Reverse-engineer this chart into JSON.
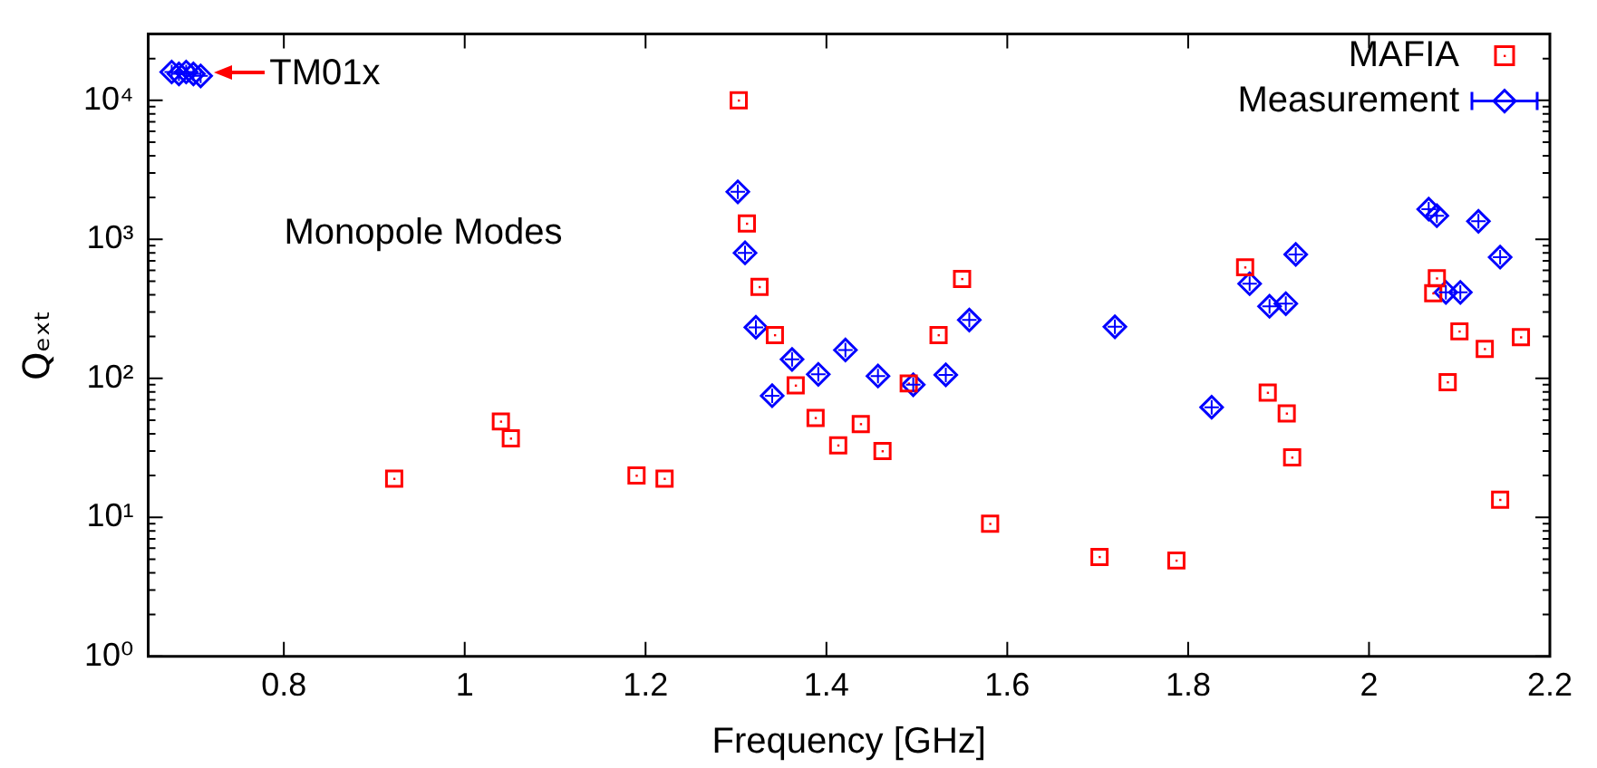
{
  "chart_data": {
    "type": "scatter",
    "xlabel": "Frequency [GHz]",
    "ylabel": "Qₑₓₜ",
    "log": "y",
    "grid": false,
    "legend": "top right",
    "xlim": [
      0.65,
      2.2
    ],
    "xticks": [
      0.8,
      1,
      1.2,
      1.4,
      1.6,
      1.8,
      2,
      2.2
    ],
    "ylim": [
      1,
      30000
    ],
    "yticks": [
      {
        "value": 1,
        "label": "10⁰"
      },
      {
        "value": 2,
        "label": null
      },
      {
        "value": 3,
        "label": null
      },
      {
        "value": 4,
        "label": null
      },
      {
        "value": 5,
        "label": null
      },
      {
        "value": 6,
        "label": null
      },
      {
        "value": 7,
        "label": null
      },
      {
        "value": 8,
        "label": null
      },
      {
        "value": 9,
        "label": null
      },
      {
        "value": 10,
        "label": "10¹"
      },
      {
        "value": 20,
        "label": null
      },
      {
        "value": 30,
        "label": null
      },
      {
        "value": 40,
        "label": null
      },
      {
        "value": 50,
        "label": null
      },
      {
        "value": 60,
        "label": null
      },
      {
        "value": 70,
        "label": null
      },
      {
        "value": 80,
        "label": null
      },
      {
        "value": 90,
        "label": null
      },
      {
        "value": 100,
        "label": "10²"
      },
      {
        "value": 200,
        "label": null
      },
      {
        "value": 300,
        "label": null
      },
      {
        "value": 400,
        "label": null
      },
      {
        "value": 500,
        "label": null
      },
      {
        "value": 600,
        "label": null
      },
      {
        "value": 700,
        "label": null
      },
      {
        "value": 800,
        "label": null
      },
      {
        "value": 900,
        "label": null
      },
      {
        "value": 1000,
        "label": "10³"
      },
      {
        "value": 2000,
        "label": null
      },
      {
        "value": 3000,
        "label": null
      },
      {
        "value": 4000,
        "label": null
      },
      {
        "value": 5000,
        "label": null
      },
      {
        "value": 6000,
        "label": null
      },
      {
        "value": 7000,
        "label": null
      },
      {
        "value": 8000,
        "label": null
      },
      {
        "value": 9000,
        "label": null
      },
      {
        "value": 10000,
        "label": "10⁴"
      },
      {
        "value": 20000,
        "label": null
      },
      {
        "value": 30000,
        "label": null
      }
    ],
    "annotations": [
      {
        "text": "TM01x",
        "x": 0.72,
        "y": 16000
      },
      "Monopole Modes"
    ],
    "series": [
      {
        "name": "MAFIA",
        "color": "#ff0000",
        "marker": "square",
        "x": [
          0.922,
          1.04,
          1.051,
          1.19,
          1.221,
          1.303,
          1.312,
          1.326,
          1.343,
          1.366,
          1.388,
          1.413,
          1.438,
          1.462,
          1.491,
          1.524,
          1.55,
          1.581,
          1.702,
          1.787,
          1.863,
          1.888,
          1.909,
          1.915,
          2.071,
          2.075,
          2.087,
          2.1,
          2.128,
          2.145,
          2.168
        ],
        "values": [
          19,
          49,
          37,
          20,
          19,
          10000,
          1300,
          455,
          205,
          89,
          52,
          33,
          47,
          30,
          92,
          205,
          520,
          9,
          5.2,
          4.9,
          630,
          79,
          56,
          27,
          410,
          525,
          94,
          218,
          163,
          13.4,
          198
        ]
      },
      {
        "name": "Measurement",
        "color": "#0000ff",
        "marker": "diamond",
        "x": [
          0.676,
          0.684,
          0.692,
          0.7,
          0.708,
          1.302,
          1.31,
          1.322,
          1.34,
          1.362,
          1.391,
          1.421,
          1.457,
          1.496,
          1.532,
          1.558,
          1.719,
          1.826,
          1.868,
          1.89,
          1.908,
          1.919,
          2.066,
          2.075,
          2.085,
          2.101,
          2.121,
          2.145
        ],
        "values": [
          16000,
          15500,
          16000,
          15500,
          15000,
          2200,
          800,
          233,
          75,
          137,
          107,
          160,
          104,
          90,
          106,
          263,
          235,
          62,
          480,
          330,
          345,
          780,
          1650,
          1480,
          416,
          416,
          1350,
          745
        ]
      }
    ]
  }
}
